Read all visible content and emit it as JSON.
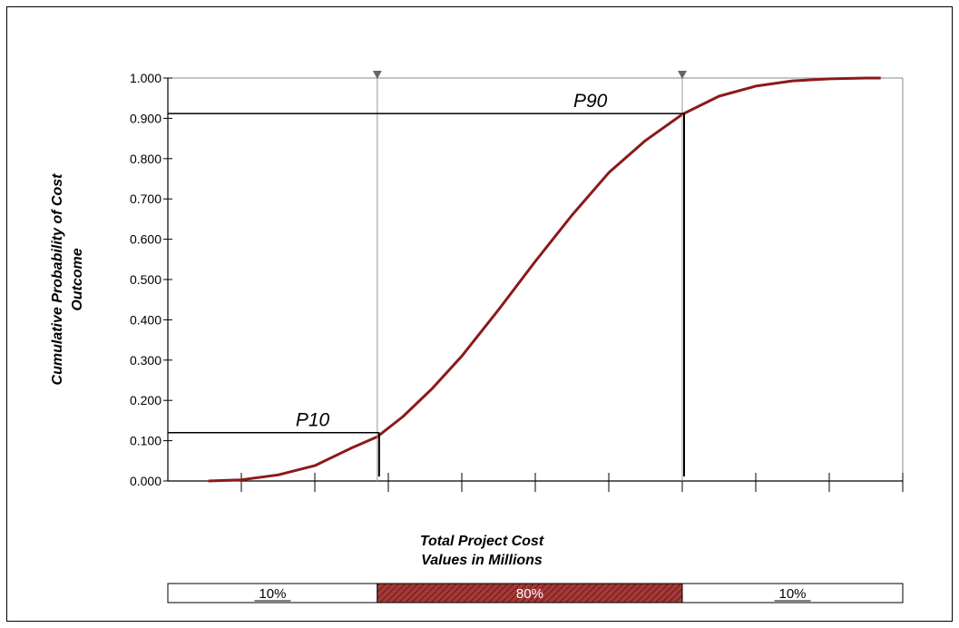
{
  "chart_data": {
    "type": "line",
    "title": "",
    "xlabel": "Total Project Cost\nValues in Millions",
    "ylabel": "Cumulative Probability of Cost\nOutcome",
    "ylim": [
      0,
      1
    ],
    "xlim": [
      0,
      10
    ],
    "yticks": [
      "0.000",
      "0.100",
      "0.200",
      "0.300",
      "0.400",
      "0.500",
      "0.600",
      "0.700",
      "0.800",
      "0.900",
      "1.000"
    ],
    "xticks": [
      1,
      2,
      3,
      4,
      5,
      6,
      7,
      8,
      9,
      10
    ],
    "grid": false,
    "series": [
      {
        "color": "#8b1a1a",
        "x": [
          0.55,
          1.0,
          1.5,
          2.0,
          2.5,
          2.85,
          3.2,
          3.6,
          4.0,
          4.5,
          5.0,
          5.5,
          6.0,
          6.5,
          7.0,
          7.5,
          8.0,
          8.5,
          9.0,
          9.5,
          9.7
        ],
        "y": [
          0.0,
          0.003,
          0.015,
          0.038,
          0.082,
          0.11,
          0.16,
          0.23,
          0.31,
          0.425,
          0.545,
          0.66,
          0.765,
          0.845,
          0.91,
          0.955,
          0.98,
          0.993,
          0.998,
          1.0,
          1.0
        ]
      }
    ],
    "annotations": [
      {
        "label": "P10",
        "x": 2.85,
        "y": 0.12
      },
      {
        "label": "P90",
        "x": 7.0,
        "y": 0.912
      }
    ],
    "percentile_band": [
      {
        "label": "10%",
        "from": 0,
        "to": 2.85
      },
      {
        "label": "80%",
        "from": 2.85,
        "to": 7.0
      },
      {
        "label": "10%",
        "from": 7.0,
        "to": 10
      }
    ]
  }
}
